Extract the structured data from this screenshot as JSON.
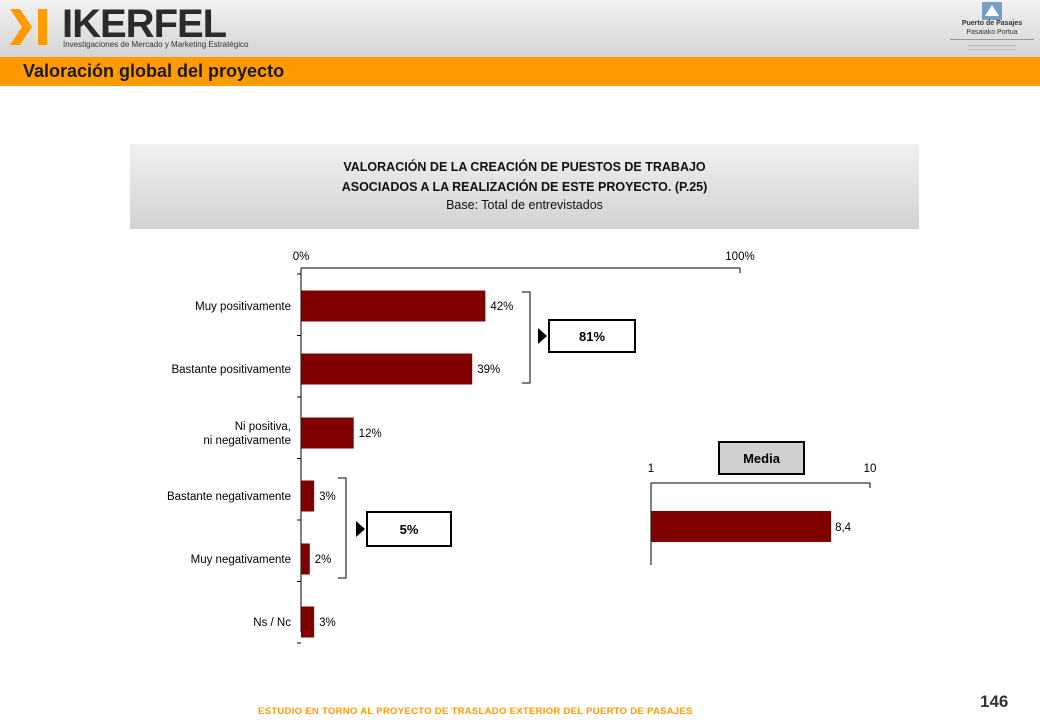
{
  "header": {
    "logo_name": "IKERFEL",
    "logo_tagline": "Investigaciones de Mercado y Marketing Estratégico",
    "port_line1": "Puerto de Pasajes",
    "port_line2": "Pasaiako Portua",
    "orange": "#ff9a00"
  },
  "page_title": "Valoración global del proyecto",
  "question": {
    "line1": "VALORACIÓN DE LA CREACIÓN DE PUESTOS DE TRABAJO",
    "line2": "ASOCIADOS A LA REALIZACIÓN DE ESTE PROYECTO. (P.25)",
    "base": "Base: Total de entrevistados"
  },
  "chart_data": [
    {
      "type": "bar",
      "orientation": "horizontal",
      "categories": [
        "Muy positivamente",
        "Bastante positivamente",
        "Ni positiva, ni negativamente",
        "Bastante negativamente",
        "Muy negativamente",
        "Ns / Nc"
      ],
      "values": [
        42,
        39,
        12,
        3,
        2,
        3
      ],
      "value_labels": [
        "42%",
        "39%",
        "12%",
        "3%",
        "2%",
        "3%"
      ],
      "xlim": [
        0,
        100
      ],
      "tick_labels": [
        "0%",
        "100%"
      ],
      "bar_color": "#800000",
      "groups": [
        {
          "label": "81%",
          "rows": [
            0,
            1
          ]
        },
        {
          "label": "5%",
          "rows": [
            3,
            4
          ]
        }
      ]
    },
    {
      "type": "bar",
      "orientation": "horizontal",
      "title": "Media",
      "categories": [
        ""
      ],
      "values": [
        8.4
      ],
      "value_labels": [
        "8,4"
      ],
      "xlim": [
        1,
        10
      ],
      "tick_labels": [
        "1",
        "10"
      ],
      "bar_color": "#800000"
    }
  ],
  "page_number": "146",
  "footer": "ESTUDIO EN TORNO AL PROYECTO DE TRASLADO EXTERIOR DEL PUERTO DE PASAJES"
}
